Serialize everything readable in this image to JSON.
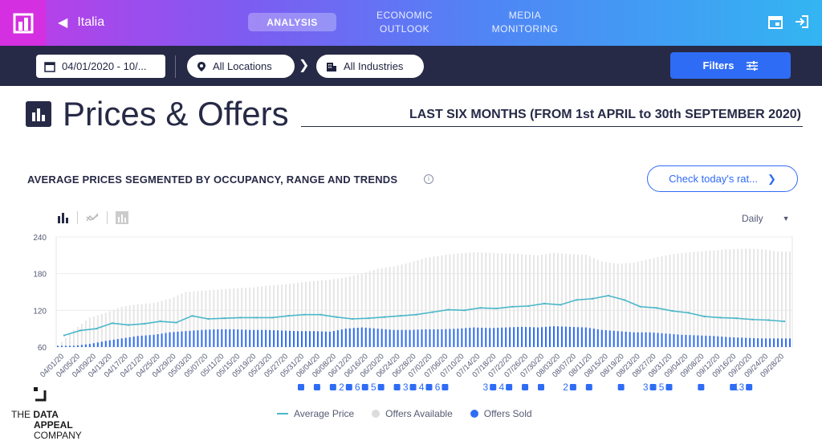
{
  "header": {
    "country": "Italia",
    "tabs": [
      {
        "label": "ANALYSIS",
        "active": true
      },
      {
        "label_line1": "ECONOMIC",
        "label_line2": "OUTLOOK"
      },
      {
        "label_line1": "MEDIA",
        "label_line2": "MONITORING"
      }
    ]
  },
  "filterbar": {
    "date_value": "04/01/2020 - 10/...",
    "location": "All Locations",
    "industry": "All Industries",
    "filters_label": "Filters"
  },
  "page": {
    "title": "Prices & Offers",
    "period": "LAST SIX MONTHS (FROM 1st APRIL to 30th SEPTEMBER 2020)",
    "section_title": "AVERAGE PRICES SEGMENTED BY OCCUPANCY, RANGE AND TRENDS",
    "check_button": "Check today's rat...",
    "granularity": "Daily"
  },
  "colors": {
    "accent": "#2f6cf5",
    "line": "#4bb7c9",
    "available": "#e6e6e6",
    "sold": "#2f6cf5"
  },
  "chart_data": {
    "type": "bar",
    "ylim": [
      60,
      240
    ],
    "yticks": [
      "240",
      "180",
      "120",
      "60"
    ],
    "xtick_labels": [
      "04/01/20",
      "04/05/20",
      "04/09/20",
      "04/13/20",
      "04/17/20",
      "04/21/20",
      "04/25/20",
      "04/29/20",
      "05/03/20",
      "05/07/20",
      "05/11/20",
      "05/15/20",
      "05/19/20",
      "05/23/20",
      "05/27/20",
      "05/31/20",
      "06/04/20",
      "06/08/20",
      "06/12/20",
      "06/16/20",
      "06/20/20",
      "06/24/20",
      "06/28/20",
      "07/02/20",
      "07/06/20",
      "07/10/20",
      "07/14/20",
      "07/18/20",
      "07/22/20",
      "07/26/20",
      "07/30/20",
      "08/03/20",
      "08/07/20",
      "08/11/20",
      "08/15/20",
      "08/19/20",
      "08/23/20",
      "08/27/20",
      "08/31/20",
      "09/04/20",
      "09/08/20",
      "09/12/20",
      "09/16/20",
      "09/20/20",
      "09/24/20",
      "09/28/20"
    ],
    "event_markers": [
      {
        "index": 15,
        "label": ""
      },
      {
        "index": 16,
        "label": ""
      },
      {
        "index": 17,
        "label": ""
      },
      {
        "index": 18,
        "label": "2"
      },
      {
        "index": 19,
        "label": "6"
      },
      {
        "index": 20,
        "label": "5"
      },
      {
        "index": 21,
        "label": ""
      },
      {
        "index": 22,
        "label": "3"
      },
      {
        "index": 23,
        "label": "4"
      },
      {
        "index": 24,
        "label": "6"
      },
      {
        "index": 27,
        "label": "3"
      },
      {
        "index": 28,
        "label": "4"
      },
      {
        "index": 29,
        "label": ""
      },
      {
        "index": 30,
        "label": ""
      },
      {
        "index": 32,
        "label": "2"
      },
      {
        "index": 33,
        "label": ""
      },
      {
        "index": 35,
        "label": ""
      },
      {
        "index": 37,
        "label": "3"
      },
      {
        "index": 38,
        "label": "5"
      },
      {
        "index": 40,
        "label": ""
      },
      {
        "index": 42,
        "label": ""
      },
      {
        "index": 43,
        "label": "13"
      }
    ],
    "series": [
      {
        "name": "Average Price",
        "type": "line"
      },
      {
        "name": "Offers Available",
        "type": "bar"
      },
      {
        "name": "Offers Sold",
        "type": "bar"
      }
    ],
    "average_price_by_tick": [
      79,
      87,
      90,
      99,
      96,
      98,
      102,
      100,
      111,
      106,
      107,
      108,
      108,
      108,
      111,
      113,
      113,
      109,
      106,
      107,
      109,
      111,
      113,
      117,
      121,
      120,
      124,
      123,
      126,
      127,
      131,
      129,
      137,
      139,
      144,
      137,
      126,
      124,
      119,
      116,
      110,
      108,
      107,
      105,
      104,
      102
    ],
    "offers_available_by_tick": [
      62,
      88,
      108,
      116,
      126,
      130,
      132,
      139,
      150,
      152,
      154,
      156,
      157,
      160,
      162,
      165,
      168,
      170,
      174,
      180,
      188,
      192,
      198,
      206,
      210,
      213,
      215,
      214,
      213,
      212,
      210,
      214,
      212,
      211,
      200,
      196,
      198,
      204,
      210,
      214,
      216,
      218,
      220,
      221,
      220,
      216
    ],
    "offers_sold_by_tick": [
      62,
      62,
      65,
      70,
      74,
      78,
      80,
      84,
      86,
      88,
      89,
      89,
      88,
      88,
      87,
      86,
      86,
      85,
      90,
      92,
      90,
      88,
      88,
      89,
      89,
      90,
      92,
      91,
      92,
      93,
      92,
      94,
      93,
      92,
      88,
      86,
      84,
      84,
      82,
      80,
      79,
      78,
      76,
      75,
      74,
      74
    ]
  },
  "legend": {
    "average_price": "Average Price",
    "offers_available": "Offers Available",
    "offers_sold": "Offers Sold"
  },
  "brand": {
    "line1a": "THE",
    "line1b": "DATA",
    "line2": "APPEAL",
    "line3": "COMPANY"
  }
}
